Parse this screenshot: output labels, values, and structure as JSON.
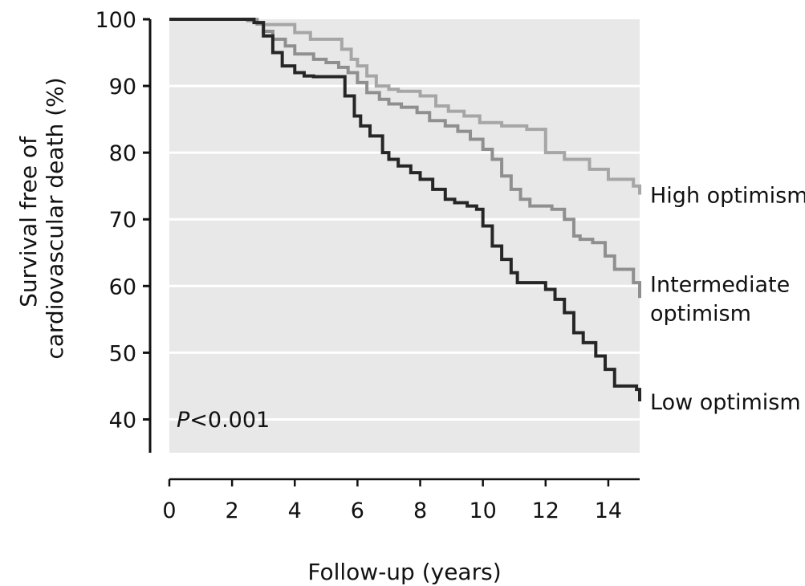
{
  "chart_data": {
    "type": "line",
    "step": true,
    "xlabel": "Follow-up (years)",
    "ylabel_lines": [
      "Survival free of",
      "cardiovascular death (%)"
    ],
    "xlim": [
      0,
      15
    ],
    "ylim": [
      35,
      100
    ],
    "x_ticks": [
      0,
      2,
      4,
      6,
      8,
      10,
      12,
      14
    ],
    "y_ticks": [
      40,
      50,
      60,
      70,
      80,
      90,
      100
    ],
    "grid": true,
    "annotation": {
      "italic": "P",
      "rest": "<0.001"
    },
    "colors": {
      "background": "#e8e8e8",
      "grid": "#ffffff"
    },
    "series": [
      {
        "name": "High optimism",
        "label_lines": [
          "High optimism"
        ],
        "color": "#a6a6a6",
        "x": [
          0,
          2,
          2.8,
          3.0,
          3.3,
          3.6,
          4.0,
          4.5,
          5.0,
          5.5,
          5.8,
          6.0,
          6.3,
          6.6,
          7.0,
          7.3,
          8.0,
          8.5,
          8.9,
          9.4,
          9.9,
          10.6,
          11.4,
          11.9,
          12.0,
          12.3,
          12.6,
          13.0,
          13.4,
          14.0,
          14.5,
          14.8,
          15.0
        ],
        "y": [
          100,
          100,
          99.5,
          99.2,
          99.2,
          99.2,
          98,
          97,
          97,
          95.5,
          94,
          93,
          91.5,
          90,
          89.5,
          89.2,
          88.5,
          87,
          86.2,
          85.5,
          84.5,
          84,
          83.5,
          83.5,
          80,
          80,
          79,
          79,
          77.5,
          76,
          76,
          75,
          73.7
        ]
      },
      {
        "name": "Intermediate optimism",
        "label_lines": [
          "Intermediate",
          "optimism"
        ],
        "color": "#8f8f8f",
        "x": [
          0,
          2,
          2.5,
          2.8,
          3.0,
          3.3,
          3.7,
          4.0,
          4.6,
          5.0,
          5.4,
          5.7,
          6.0,
          6.3,
          6.7,
          7.0,
          7.4,
          7.9,
          8.3,
          8.8,
          9.2,
          9.6,
          10.0,
          10.3,
          10.6,
          10.9,
          11.2,
          11.5,
          12.2,
          12.6,
          12.9,
          13.1,
          13.5,
          13.9,
          14.2,
          14.8,
          15.0
        ],
        "y": [
          100,
          100,
          99.8,
          99.3,
          98.2,
          97,
          96,
          94.8,
          94,
          93.5,
          92.8,
          92,
          90.5,
          89,
          88,
          87.3,
          86.8,
          86,
          84.8,
          84,
          83.2,
          82,
          80.5,
          79,
          76.5,
          74.5,
          73,
          72,
          71.5,
          70,
          67.5,
          67,
          66.5,
          64.5,
          62.5,
          60.5,
          58.2
        ]
      },
      {
        "name": "Low optimism",
        "label_lines": [
          "Low optimism"
        ],
        "color": "#262626",
        "x": [
          0,
          2,
          2.7,
          3.0,
          3.3,
          3.6,
          4.0,
          4.3,
          4.6,
          5.0,
          5.6,
          5.9,
          6.1,
          6.4,
          6.8,
          7.0,
          7.3,
          7.7,
          8.0,
          8.4,
          8.8,
          9.1,
          9.5,
          9.8,
          10.0,
          10.3,
          10.6,
          10.9,
          11.1,
          12.0,
          12.3,
          12.6,
          12.9,
          13.2,
          13.6,
          13.9,
          14.2,
          14.9,
          15.0
        ],
        "y": [
          100,
          100,
          99.5,
          97.5,
          95,
          93,
          92,
          91.5,
          91.4,
          91.4,
          88.5,
          85.5,
          84,
          82.5,
          80,
          79,
          78,
          77,
          76,
          74.5,
          73,
          72.5,
          72,
          71.5,
          69,
          66,
          64,
          62,
          60.5,
          59.5,
          58,
          56,
          53,
          51.5,
          49.5,
          47.5,
          45,
          44.5,
          42.7
        ]
      }
    ]
  }
}
